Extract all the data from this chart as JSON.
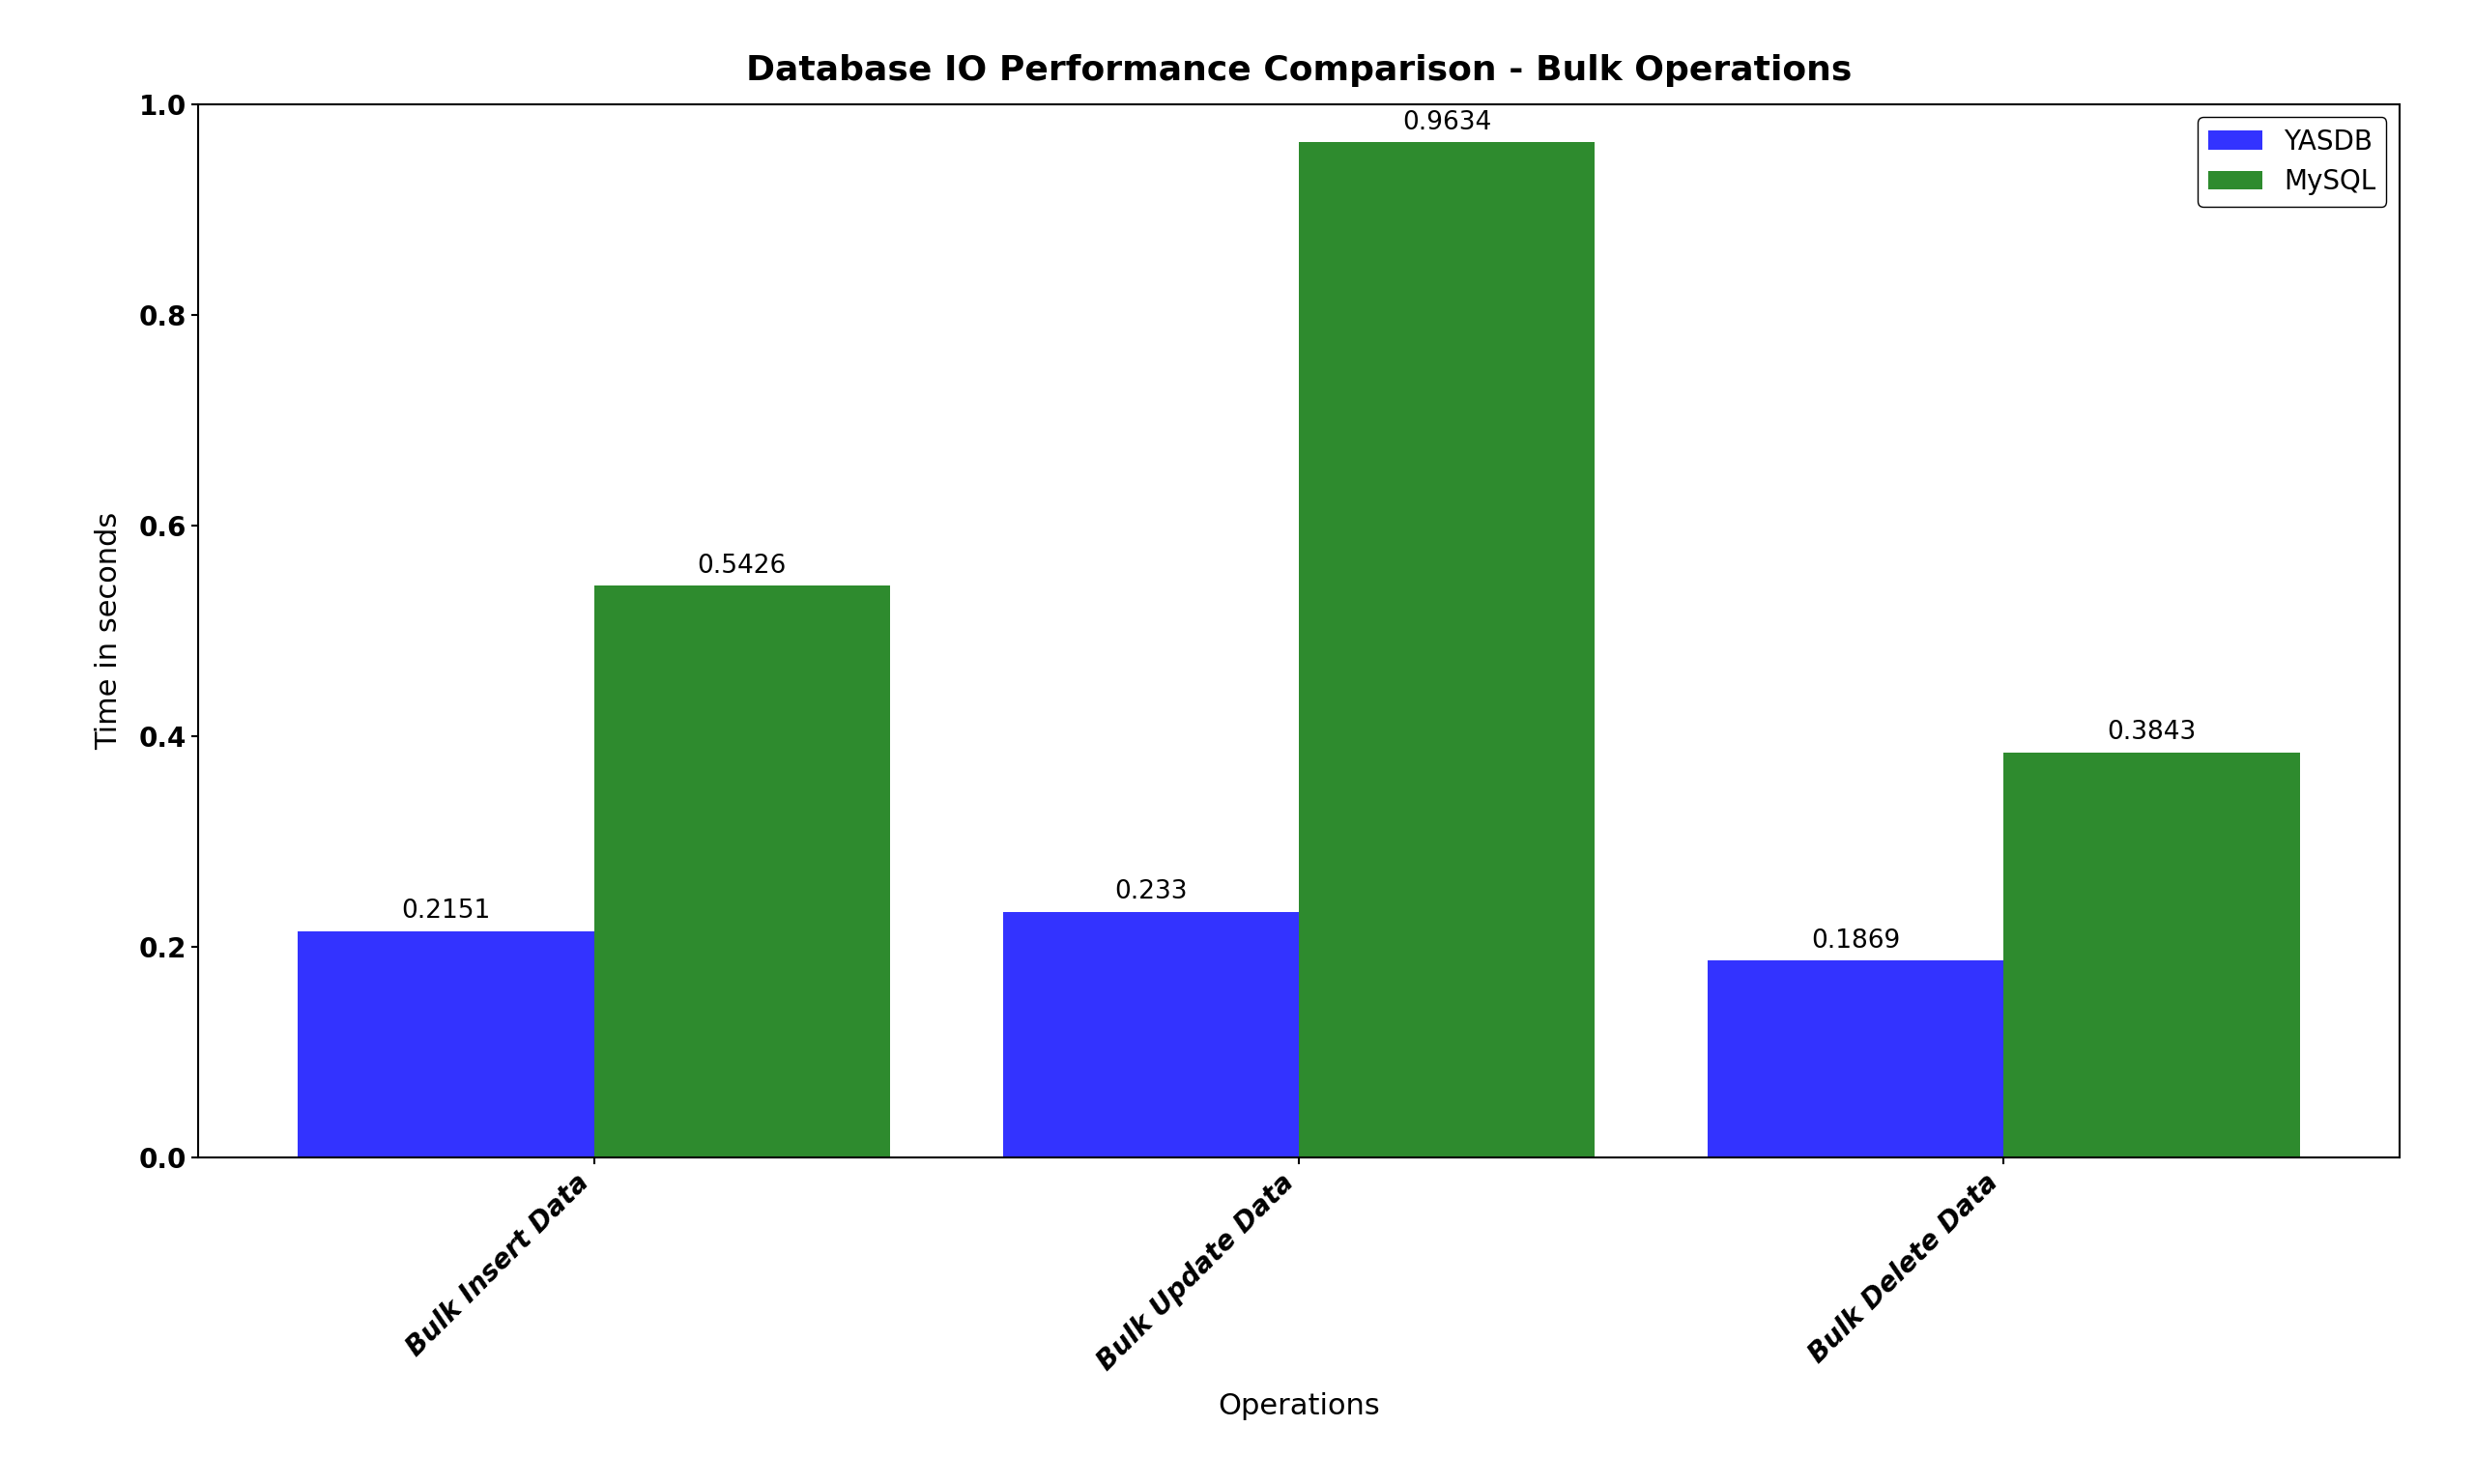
{
  "title": "Database IO Performance Comparison - Bulk Operations",
  "xlabel": "Operations",
  "ylabel": "Time in seconds",
  "categories": [
    "Bulk Insert Data",
    "Bulk Update Data",
    "Bulk Delete Data"
  ],
  "yasdb_values": [
    0.2151,
    0.233,
    0.1869
  ],
  "mysql_values": [
    0.5426,
    0.9634,
    0.3843
  ],
  "yasdb_color": "#3333ff",
  "mysql_color": "#2e8b2e",
  "ylim": [
    0.0,
    1.0
  ],
  "legend_labels": [
    "YASDB",
    "MySQL"
  ],
  "bar_width": 0.42,
  "title_fontsize": 26,
  "axis_label_fontsize": 22,
  "tick_fontsize": 20,
  "annotation_fontsize": 19,
  "legend_fontsize": 20,
  "background_color": "#ffffff"
}
